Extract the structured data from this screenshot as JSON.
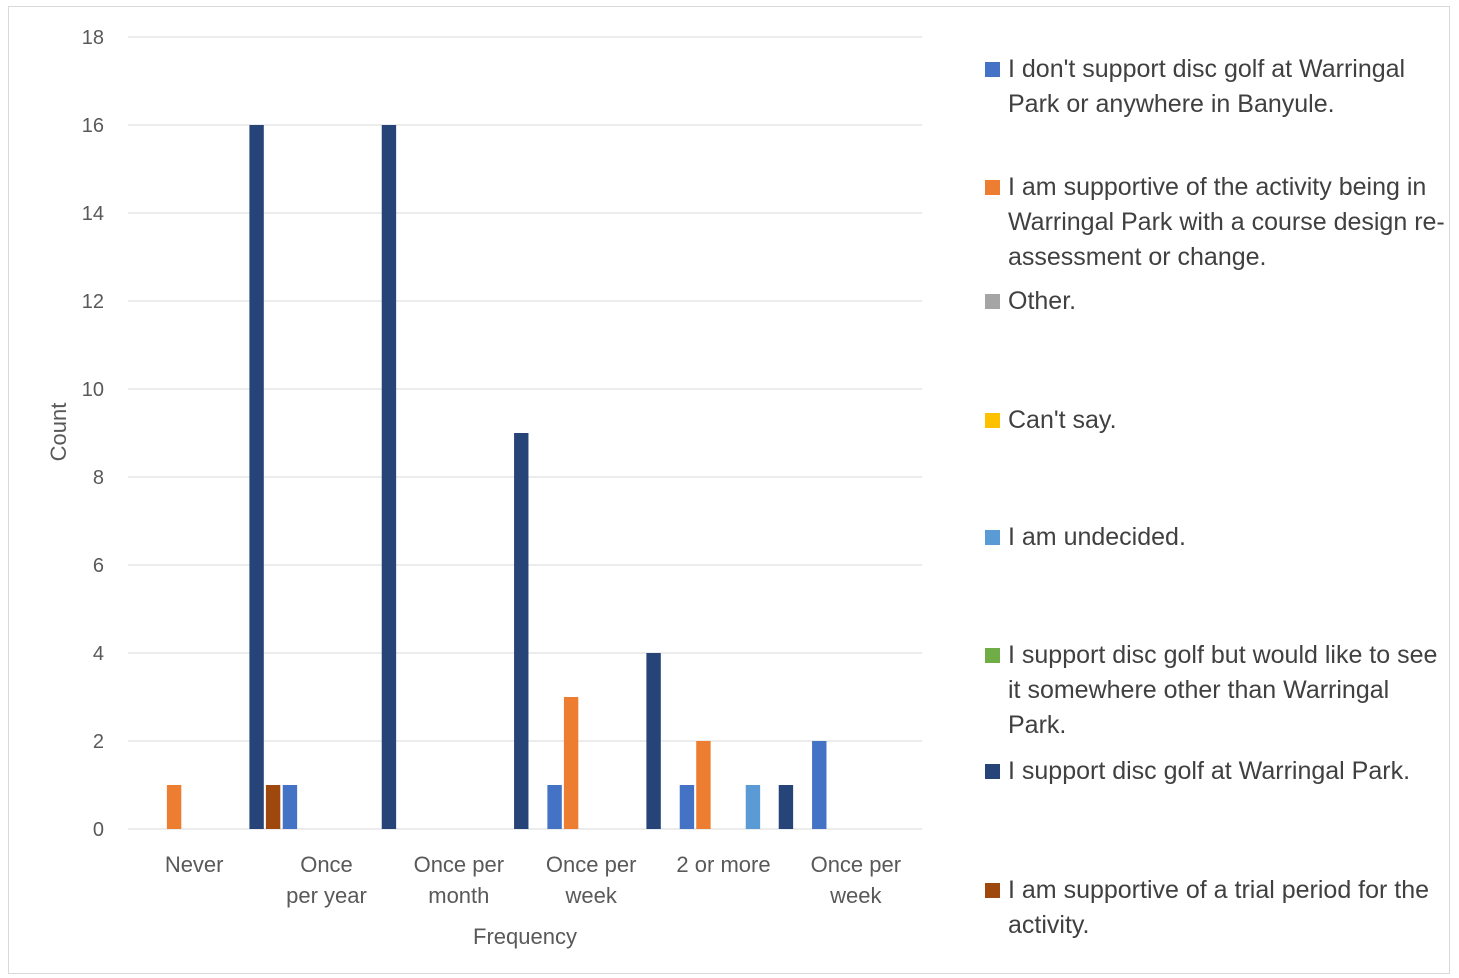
{
  "chart_data": {
    "type": "bar",
    "xlabel": "Frequency",
    "ylabel": "Count",
    "ylim": [
      0,
      18
    ],
    "yticks": [
      "0",
      "2",
      "4",
      "6",
      "8",
      "10",
      "12",
      "14",
      "16",
      "18"
    ],
    "grid": true,
    "legend_position": "right",
    "categories": [
      [
        "Never"
      ],
      [
        "Once",
        "per year"
      ],
      [
        "Once per",
        "month"
      ],
      [
        "Once per",
        "week"
      ],
      [
        "2 or more"
      ],
      [
        "Once per",
        "week"
      ]
    ],
    "series": [
      {
        "name": "I don't support disc golf at Warringal Park or anywhere in Banyule.",
        "color": "#4472C4",
        "values": [
          0,
          1,
          0,
          1,
          1,
          2
        ]
      },
      {
        "name": "I am supportive of the activity being in Warringal Park with a course design re-assessment or change.",
        "color": "#ED7D31",
        "values": [
          1,
          0,
          0,
          3,
          2,
          0
        ]
      },
      {
        "name": "Other.",
        "color": "#A5A5A5",
        "values": [
          0,
          0,
          0,
          0,
          0,
          0
        ]
      },
      {
        "name": "Can't say.",
        "color": "#FFC000",
        "values": [
          0,
          0,
          0,
          0,
          0,
          0
        ]
      },
      {
        "name": "I am undecided.",
        "color": "#5B9BD5",
        "values": [
          0,
          0,
          0,
          0,
          1,
          0
        ]
      },
      {
        "name": "I support disc golf but would like to see it somewhere other than Warringal Park.",
        "color": "#70AD47",
        "values": [
          0,
          0,
          0,
          0,
          0,
          0
        ]
      },
      {
        "name": "I support disc golf at Warringal Park.",
        "color": "#264478",
        "values": [
          16,
          16,
          9,
          4,
          1,
          0
        ]
      },
      {
        "name": "I am supportive of a trial period for the activity.",
        "color": "#9E480E",
        "values": [
          1,
          0,
          0,
          0,
          0,
          0
        ]
      }
    ]
  }
}
